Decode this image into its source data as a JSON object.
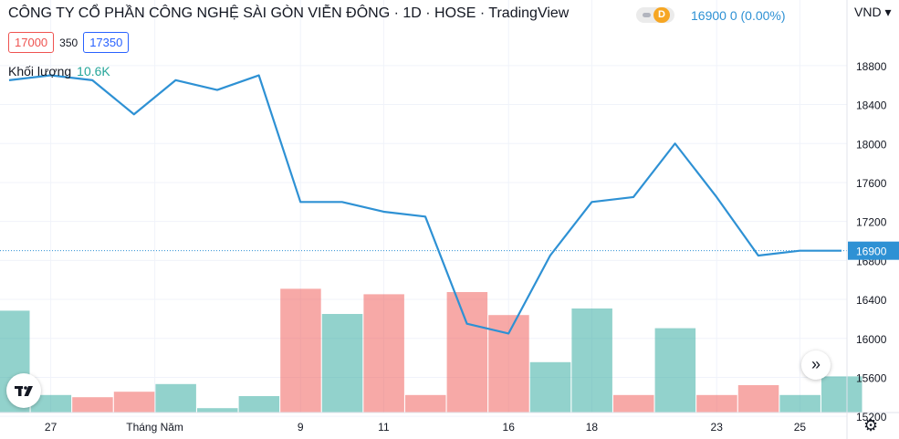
{
  "header": {
    "title": "CÔNG TY CỔ PHẦN CÔNG NGHỆ SÀI GÒN VIỄN ĐÔNG · 1D · HOSE · TradingView",
    "toggle_label": "D",
    "price_line": "16900  0 (0.00%)"
  },
  "quotes": {
    "bid": "17000",
    "spread": "350",
    "ask": "17350"
  },
  "volume": {
    "label": "Khối lượng",
    "value": "10.6K"
  },
  "currency": "VND ▾",
  "colors": {
    "line": "#2e91d4",
    "vol_up": "#26a69a",
    "vol_down": "#ef5350"
  },
  "chart_data": {
    "type": "line",
    "x_ticks": [
      "27",
      "Tháng Năm",
      "9",
      "11",
      "16",
      "18",
      "23",
      "25"
    ],
    "x_tick_index": [
      1,
      3.5,
      7,
      9,
      12,
      14,
      17,
      19
    ],
    "y_ticks": [
      15200,
      15600,
      16000,
      16400,
      16800,
      17200,
      17600,
      18000,
      18400,
      18800
    ],
    "ylim": [
      15000,
      19000
    ],
    "last_price": 16900,
    "last_price_label": "16900",
    "price": [
      18650,
      18700,
      18650,
      18300,
      18650,
      18550,
      18700,
      17400,
      17400,
      17300,
      17250,
      16150,
      16050,
      16850,
      17400,
      17450,
      18000,
      17450,
      16850,
      16900,
      16900
    ],
    "volume": [
      0.93,
      0.16,
      0.14,
      0.19,
      0.26,
      0.04,
      0.15,
      1.13,
      0.9,
      1.08,
      0.16,
      1.1,
      0.89,
      0.46,
      0.95,
      0.16,
      0.77,
      0.16,
      0.25,
      0.16,
      0.33
    ],
    "volume_direction": [
      "up",
      "up",
      "down",
      "down",
      "up",
      "up",
      "up",
      "down",
      "up",
      "down",
      "down",
      "down",
      "down",
      "up",
      "up",
      "down",
      "up",
      "down",
      "down",
      "up",
      "up"
    ]
  }
}
